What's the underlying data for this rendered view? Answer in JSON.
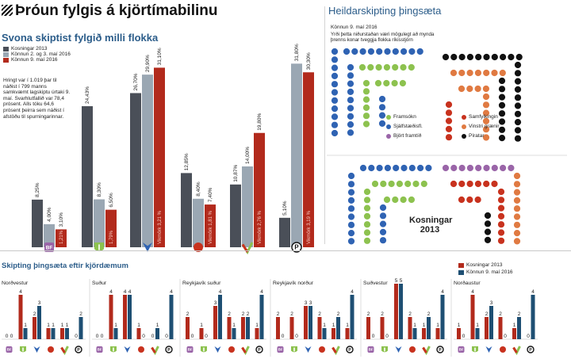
{
  "header": {
    "title": "Þróun fylgis á kjörtímabilinu",
    "subtitle": "Svona skiptist fylgið milli flokka"
  },
  "colors": {
    "s2013": "#4a4f58",
    "s_kannanir": "#9aa7b3",
    "s_kannun9": "#b22a1c",
    "framsokn": "#8dc24f",
    "sjalfstaedis": "#2f63b3",
    "bjort": "#9a65a8",
    "samfylking": "#c8321e",
    "vinstri": "#e07a42",
    "piratar": "#111111"
  },
  "intro_text": "Hringt var í 1.019 þar til náðist í 799 manns samkvæmt lagskiptu úrtaki 9. maí. Svarhlutfallið var 78,4 prósent. Alls tóku 64,6 prósent þeirra sem náðist í afstöðu til spurningarinnar.",
  "chart_data": [
    {
      "type": "bar",
      "title": "Svona skiptist fylgið milli flokka",
      "categories": [
        "Björt framtíð",
        "Framsókn",
        "Sjálfstæðisflokkur",
        "Samfylkingin",
        "Vinstri grænir",
        "Píratar"
      ],
      "series": [
        {
          "name": "Kosningar 2013",
          "values": [
            8.25,
            24.43,
            26.7,
            12.85,
            10.87,
            5.1
          ],
          "labels": [
            "8,25%",
            "24,43%",
            "26,70%",
            "12,85%",
            "10,87%",
            "5,10%"
          ]
        },
        {
          "name": "Könnun 2. og 3. maí 2016",
          "values": [
            4.0,
            8.3,
            29.9,
            8.4,
            14.0,
            31.8
          ],
          "labels": [
            "4,00%",
            "8,30%",
            "29,90%",
            "8,40%",
            "14,00%",
            "31,80%"
          ]
        },
        {
          "name": "Könnun 9. maí 2016",
          "values": [
            3.1,
            6.5,
            31.1,
            7.4,
            19.8,
            30.3
          ],
          "labels": [
            "3,10%",
            "6,50%",
            "31,10%",
            "7,40%",
            "19,80%",
            "30,30%"
          ]
        }
      ],
      "margin_labels": [
        "1,21%",
        "1,79%",
        "Vikmörk 3,21 %",
        "Vikmörk 1,81 %",
        "Vikmörk 2,76 %",
        "Vikmörk 3,19 %"
      ],
      "party_icons": [
        "bf",
        "framsokn",
        "sjalfstaedis",
        "samfylking",
        "vinstri",
        "piratar"
      ],
      "ylim": [
        0,
        35
      ]
    },
    {
      "type": "bar",
      "title": "Skipting þingsæta eftir kjördæmum",
      "series_names": [
        "Kosningar 2013",
        "Könnun 9. maí 2016"
      ],
      "party_order": [
        "bf",
        "framsokn",
        "sjalfstaedis",
        "samfylking",
        "vinstri",
        "piratar"
      ],
      "regions": [
        {
          "name": "Norðvestur",
          "s2013": [
            0,
            4,
            2,
            1,
            1,
            0
          ],
          "s2016": [
            0,
            1,
            3,
            1,
            1,
            2
          ]
        },
        {
          "name": "Suður",
          "s2013": [
            0,
            4,
            4,
            1,
            0,
            0
          ],
          "s2016": [
            0,
            1,
            4,
            0,
            1,
            4
          ]
        },
        {
          "name": "Reykjavík suður",
          "s2013": [
            2,
            1,
            3,
            2,
            2,
            1
          ],
          "s2016": [
            0,
            0,
            4,
            1,
            2,
            4
          ]
        },
        {
          "name": "Reykjavík norður",
          "s2013": [
            2,
            2,
            3,
            2,
            1,
            1
          ],
          "s2016": [
            0,
            0,
            3,
            1,
            2,
            4
          ]
        },
        {
          "name": "Suðvestur",
          "s2013": [
            2,
            2,
            5,
            2,
            1,
            1
          ],
          "s2016": [
            0,
            0,
            5,
            1,
            2,
            4
          ]
        },
        {
          "name": "Norðaustur",
          "s2013": [
            1,
            4,
            2,
            2,
            1,
            0
          ],
          "s2016": [
            0,
            1,
            3,
            0,
            2,
            4
          ]
        }
      ],
      "ylim": [
        0,
        5
      ]
    }
  ],
  "seats": {
    "title": "Heildarskipting þingsæta",
    "date": "Könnun 9. maí 2016",
    "note": "Yrði þetta niðurstaðan væri mögulegt að mynda þrenns konar tveggja flokka ríkisstjórn",
    "legend": [
      {
        "label": "Framsókn",
        "color": "#8dc24f"
      },
      {
        "label": "Sjálfstæðisfl.",
        "color": "#2f63b3"
      },
      {
        "label": "Björt framtíð",
        "color": "#9a65a8"
      }
    ],
    "legend_right": [
      {
        "label": "Samfylkingin",
        "color": "#c8321e"
      },
      {
        "label": "Vinstri grænir",
        "color": "#e07a42"
      },
      {
        "label": "Píratar",
        "color": "#111111"
      }
    ],
    "kosningar_label": "Kosningar 2013"
  },
  "bottom": {
    "title": "Skipting þingsæta eftir kjördæmum",
    "legend": [
      {
        "label": "Kosningar 2013",
        "color": "#b22a1c"
      },
      {
        "label": "Könnun 9. maí 2016",
        "color": "#1e4f73"
      }
    ]
  }
}
